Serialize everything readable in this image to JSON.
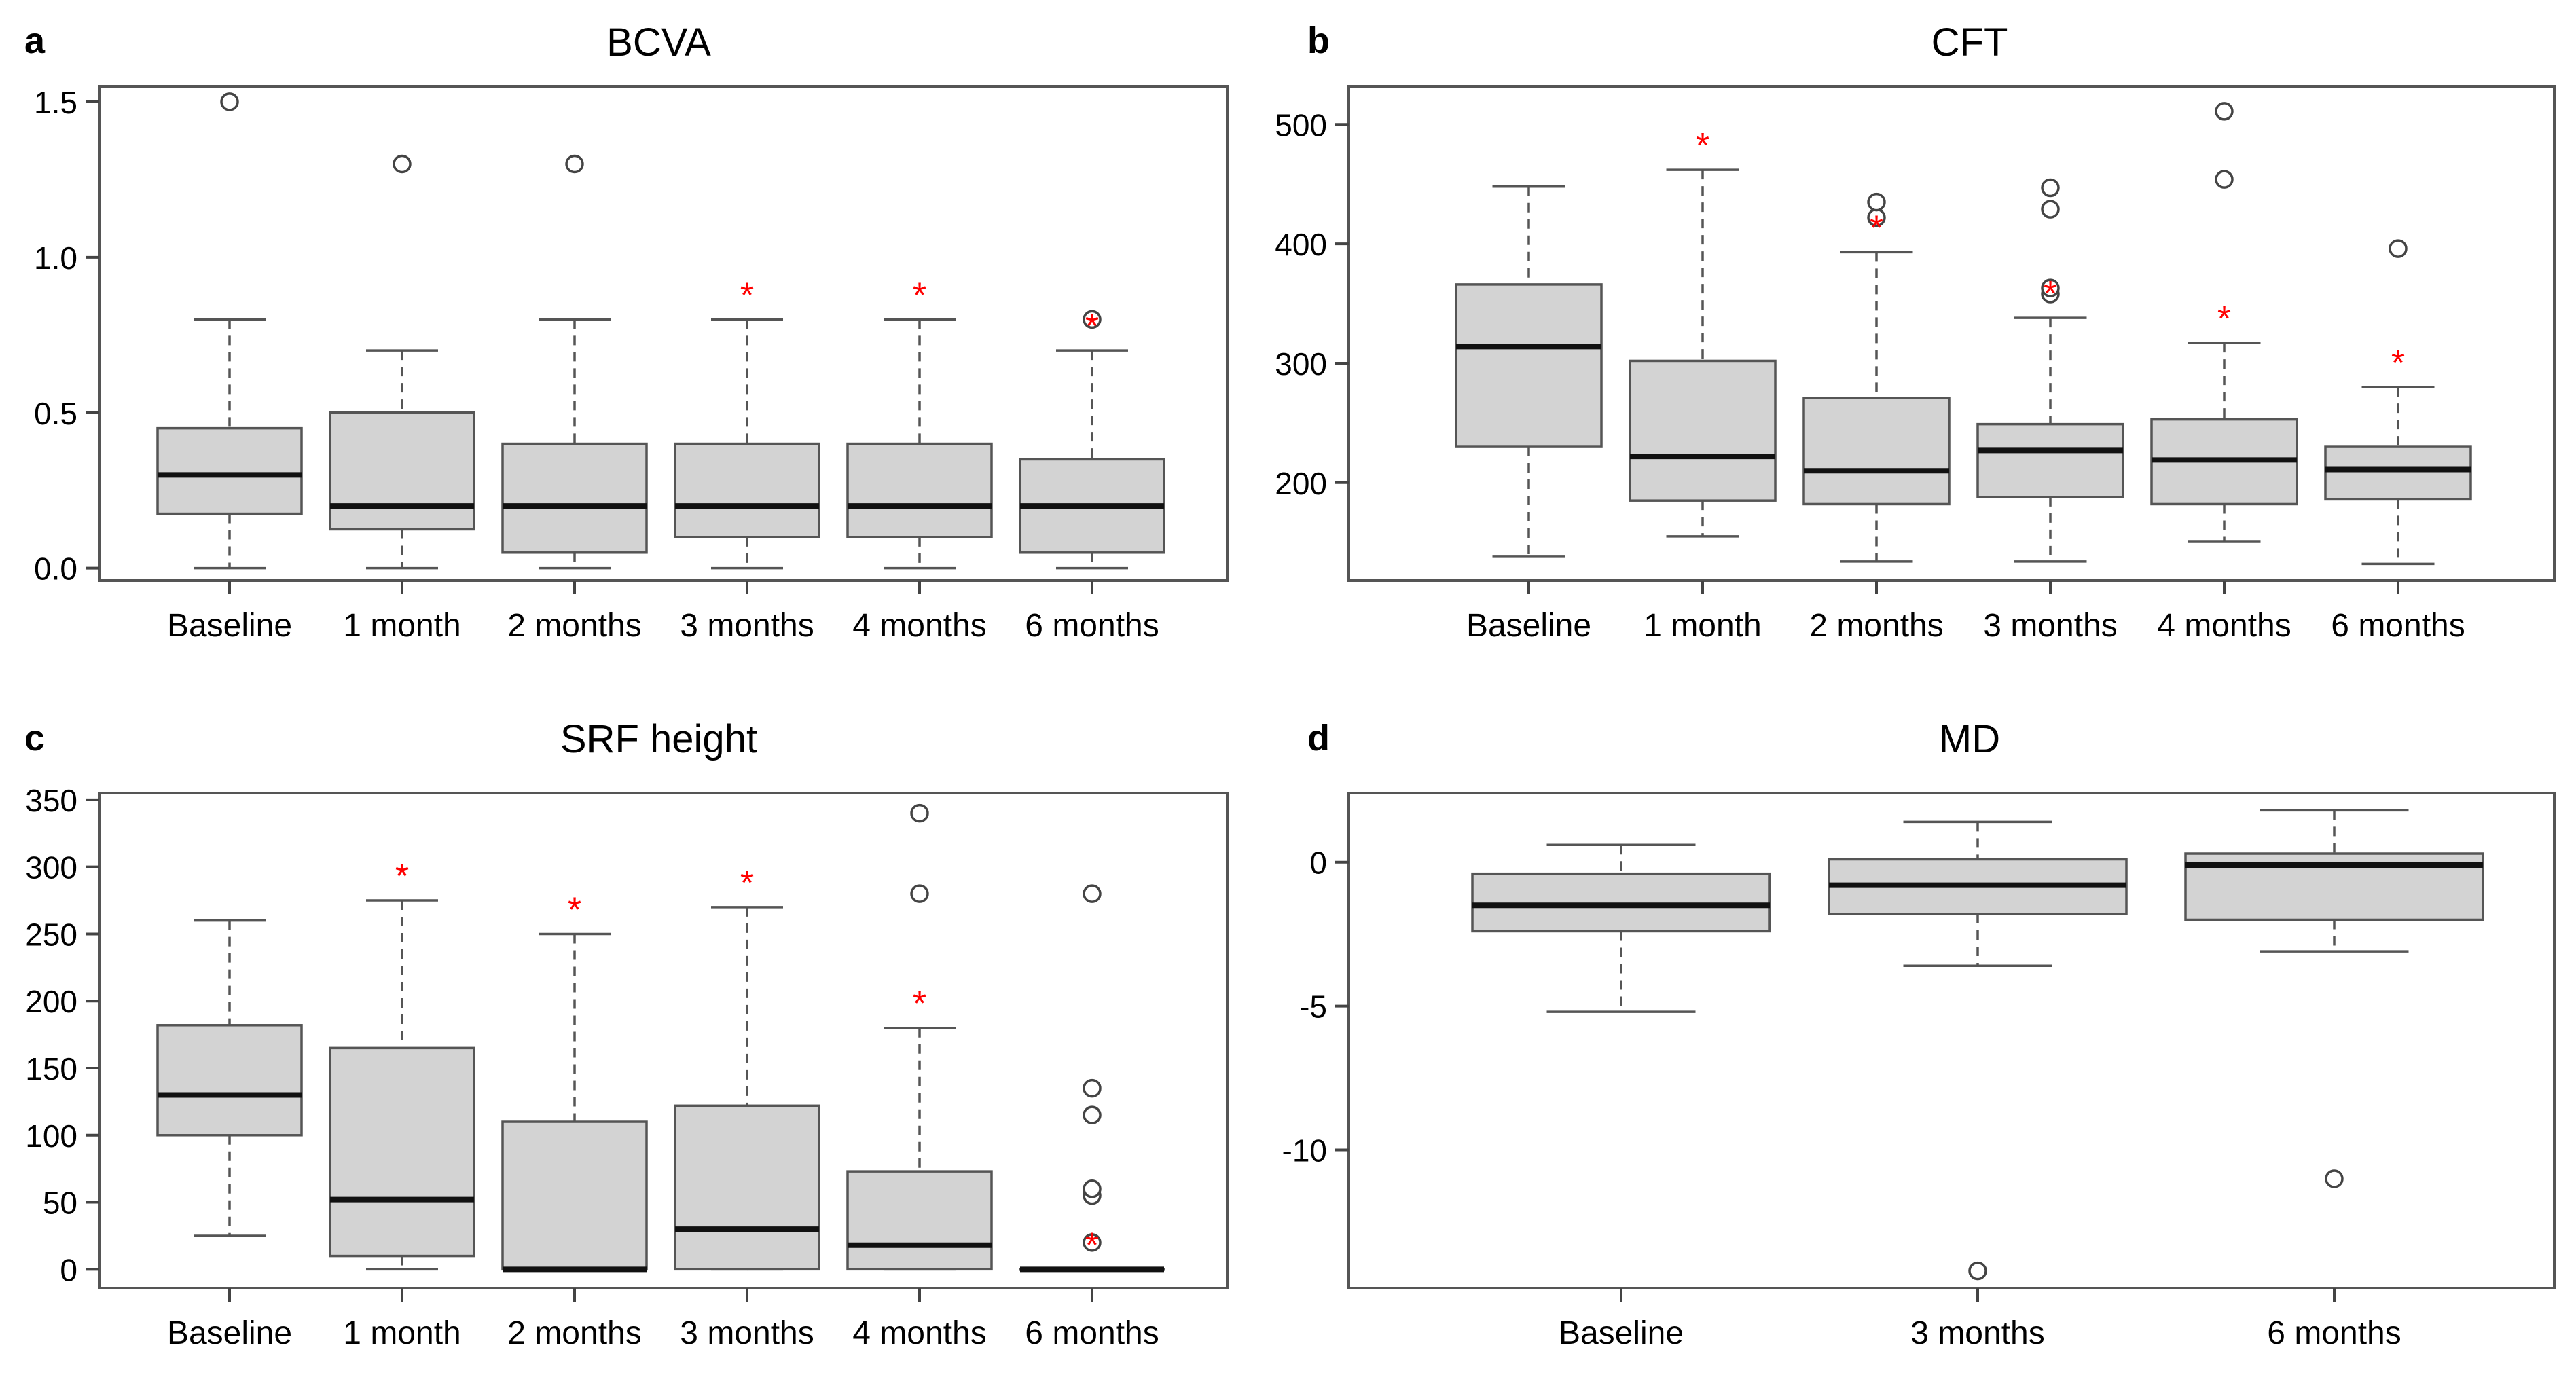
{
  "chart_data": [
    {
      "panel": "a",
      "type": "box",
      "title": "BCVA",
      "xlabel": "",
      "ylabel": "",
      "ylim": [
        -0.04,
        1.55
      ],
      "yticks": [
        0.0,
        0.5,
        1.0,
        1.5
      ],
      "ytick_labels": [
        "0.0",
        "0.5",
        "1.0",
        "1.5"
      ],
      "categories": [
        "Baseline",
        "1 month",
        "2 months",
        "3 months",
        "4 months",
        "6 months"
      ],
      "boxes": [
        {
          "whisker_low": 0.0,
          "q1": 0.175,
          "median": 0.3,
          "q3": 0.45,
          "whisker_high": 0.8,
          "outliers": [
            1.5
          ],
          "significant": false
        },
        {
          "whisker_low": 0.0,
          "q1": 0.125,
          "median": 0.2,
          "q3": 0.5,
          "whisker_high": 0.7,
          "outliers": [
            1.3
          ],
          "significant": false
        },
        {
          "whisker_low": 0.0,
          "q1": 0.05,
          "median": 0.2,
          "q3": 0.4,
          "whisker_high": 0.8,
          "outliers": [
            1.3
          ],
          "significant": false
        },
        {
          "whisker_low": 0.0,
          "q1": 0.1,
          "median": 0.2,
          "q3": 0.4,
          "whisker_high": 0.8,
          "outliers": [],
          "significant": true
        },
        {
          "whisker_low": 0.0,
          "q1": 0.1,
          "median": 0.2,
          "q3": 0.4,
          "whisker_high": 0.8,
          "outliers": [],
          "significant": true
        },
        {
          "whisker_low": 0.0,
          "q1": 0.05,
          "median": 0.2,
          "q3": 0.35,
          "whisker_high": 0.7,
          "outliers": [
            0.8
          ],
          "significant": true
        }
      ]
    },
    {
      "panel": "b",
      "type": "box",
      "title": "CFT",
      "xlabel": "",
      "ylabel": "",
      "ylim": [
        118,
        532
      ],
      "yticks": [
        200,
        300,
        400,
        500
      ],
      "ytick_labels": [
        "200",
        "300",
        "400",
        "500"
      ],
      "categories": [
        "Baseline",
        "1 month",
        "2 months",
        "3 months",
        "4 months",
        "6 months"
      ],
      "boxes": [
        {
          "whisker_low": 138,
          "q1": 230,
          "median": 314,
          "q3": 366,
          "whisker_high": 448,
          "outliers": [],
          "significant": false
        },
        {
          "whisker_low": 155,
          "q1": 185,
          "median": 222,
          "q3": 302,
          "whisker_high": 462,
          "outliers": [],
          "significant": true
        },
        {
          "whisker_low": 134,
          "q1": 182,
          "median": 210,
          "q3": 271,
          "whisker_high": 393,
          "outliers": [
            422,
            435
          ],
          "significant": true
        },
        {
          "whisker_low": 134,
          "q1": 188,
          "median": 227,
          "q3": 249,
          "whisker_high": 338,
          "outliers": [
            358,
            363,
            429,
            447
          ],
          "significant": true
        },
        {
          "whisker_low": 151,
          "q1": 182,
          "median": 219,
          "q3": 253,
          "whisker_high": 317,
          "outliers": [
            454,
            511
          ],
          "significant": true
        },
        {
          "whisker_low": 132,
          "q1": 186,
          "median": 211,
          "q3": 230,
          "whisker_high": 280,
          "outliers": [
            396
          ],
          "significant": true
        }
      ]
    },
    {
      "panel": "c",
      "type": "box",
      "title": "SRF height",
      "xlabel": "",
      "ylabel": "",
      "ylim": [
        -14,
        355
      ],
      "yticks": [
        0,
        50,
        100,
        150,
        200,
        250,
        300,
        350
      ],
      "ytick_labels": [
        "0",
        "50",
        "100",
        "150",
        "200",
        "250",
        "300",
        "350"
      ],
      "categories": [
        "Baseline",
        "1 month",
        "2 months",
        "3 months",
        "4 months",
        "6 months"
      ],
      "boxes": [
        {
          "whisker_low": 25,
          "q1": 100,
          "median": 130,
          "q3": 182,
          "whisker_high": 260,
          "outliers": [],
          "significant": false
        },
        {
          "whisker_low": 0,
          "q1": 10,
          "median": 52,
          "q3": 165,
          "whisker_high": 275,
          "outliers": [],
          "significant": true
        },
        {
          "whisker_low": 0,
          "q1": 0,
          "median": 0,
          "q3": 110,
          "whisker_high": 250,
          "outliers": [],
          "significant": true
        },
        {
          "whisker_low": 0,
          "q1": 0,
          "median": 30,
          "q3": 122,
          "whisker_high": 270,
          "outliers": [],
          "significant": true
        },
        {
          "whisker_low": 0,
          "q1": 0,
          "median": 18,
          "q3": 73,
          "whisker_high": 180,
          "outliers": [
            280,
            340
          ],
          "significant": true
        },
        {
          "whisker_low": 0,
          "q1": 0,
          "median": 0,
          "q3": 0,
          "whisker_high": 0,
          "outliers": [
            20,
            55,
            60,
            115,
            135,
            280
          ],
          "significant": true
        }
      ]
    },
    {
      "panel": "d",
      "type": "box",
      "title": "MD",
      "xlabel": "",
      "ylabel": "",
      "ylim": [
        -14.8,
        2.4
      ],
      "yticks": [
        -10,
        -5,
        0
      ],
      "ytick_labels": [
        "-10",
        "-5",
        "0"
      ],
      "categories": [
        "Baseline",
        "3 months",
        "6 months"
      ],
      "boxes": [
        {
          "whisker_low": -5.2,
          "q1": -2.4,
          "median": -1.5,
          "q3": -0.4,
          "whisker_high": 0.6,
          "outliers": [],
          "significant": false
        },
        {
          "whisker_low": -3.6,
          "q1": -1.8,
          "median": -0.8,
          "q3": 0.1,
          "whisker_high": 1.4,
          "outliers": [
            -14.2
          ],
          "significant": false
        },
        {
          "whisker_low": -3.1,
          "q1": -2.0,
          "median": -0.1,
          "q3": 0.3,
          "whisker_high": 1.8,
          "outliers": [
            -11.0
          ],
          "significant": false
        }
      ]
    }
  ],
  "significance_marker": "*",
  "colors": {
    "box_fill": "#d3d3d3",
    "box_stroke": "#555555",
    "median": "#111111",
    "significance": "#ff0000",
    "axis": "#444444",
    "text": "#000000"
  }
}
